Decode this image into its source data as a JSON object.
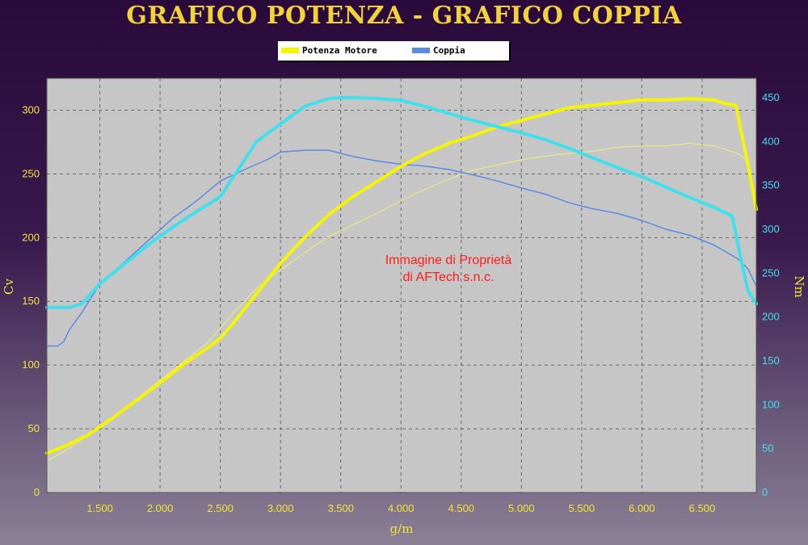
{
  "chart_data": {
    "type": "line",
    "title": "GRAFICO POTENZA - GRAFICO COPPIA",
    "xlabel": "g/m",
    "ylabel_left": "Cv",
    "ylabel_right": "Nm",
    "xlim": [
      1060,
      6950
    ],
    "ylim_left": [
      0,
      325
    ],
    "ylim_right": [
      0,
      472
    ],
    "x_ticks": [
      1500,
      2000,
      2500,
      3000,
      3500,
      4000,
      4500,
      5000,
      5500,
      6000,
      6500
    ],
    "x_tick_labels": [
      "1.500",
      "2.000",
      "2.500",
      "3.000",
      "3.500",
      "4.000",
      "4.500",
      "5.000",
      "5.500",
      "6.000",
      "6.500"
    ],
    "y_left_ticks": [
      0,
      50,
      100,
      150,
      200,
      250,
      300
    ],
    "y_right_ticks": [
      0,
      50,
      100,
      150,
      200,
      250,
      300,
      350,
      400,
      450
    ],
    "grid": true,
    "legend_position": "top-center",
    "legend": [
      {
        "label": "Potenza Motore",
        "color": "#f5f500"
      },
      {
        "label": "Coppia",
        "color": "#5a8be0"
      }
    ],
    "annotation": [
      "Immagine di Proprietà",
      "di AFTech s.n.c."
    ],
    "series": [
      {
        "axis": "left",
        "color": "#f5f500",
        "width": 4,
        "x": [
          1060,
          1200,
          1400,
          1600,
          1800,
          2000,
          2200,
          2400,
          2500,
          2600,
          2800,
          3000,
          3200,
          3400,
          3600,
          3800,
          4000,
          4200,
          4400,
          4600,
          4800,
          5000,
          5200,
          5400,
          5600,
          5800,
          6000,
          6200,
          6400,
          6600,
          6700,
          6780,
          6820,
          6880,
          6950
        ],
        "y": [
          31,
          36,
          45,
          58,
          72,
          86,
          101,
          114,
          121,
          132,
          156,
          180,
          200,
          218,
          232,
          244,
          256,
          266,
          274,
          280,
          287,
          292,
          297,
          302,
          304,
          306,
          308,
          308,
          309,
          308,
          305,
          304,
          285,
          258,
          222
        ]
      },
      {
        "axis": "left",
        "color": "#eef07a",
        "width": 1,
        "x": [
          1060,
          1200,
          1400,
          1600,
          1800,
          2000,
          2200,
          2400,
          2600,
          2800,
          3000,
          3200,
          3400,
          3600,
          3800,
          4000,
          4200,
          4400,
          4600,
          4800,
          5000,
          5200,
          5400,
          5600,
          5800,
          6000,
          6200,
          6400,
          6600,
          6800,
          6880
        ],
        "y": [
          25,
          32,
          45,
          58,
          73,
          88,
          103,
          118,
          140,
          160,
          175,
          188,
          201,
          210,
          219,
          229,
          238,
          246,
          253,
          257,
          261,
          264,
          266,
          268,
          271,
          272,
          272,
          274,
          272,
          266,
          260
        ]
      },
      {
        "axis": "right",
        "color": "#3ee0ee",
        "width": 4,
        "x": [
          1060,
          1150,
          1250,
          1350,
          1500,
          1700,
          1900,
          2100,
          2300,
          2500,
          2600,
          2800,
          3000,
          3200,
          3400,
          3500,
          3600,
          3800,
          4000,
          4200,
          4400,
          4600,
          4800,
          5000,
          5200,
          5400,
          5600,
          5800,
          6000,
          6200,
          6400,
          6600,
          6750,
          6820,
          6880,
          6950
        ],
        "y": [
          211,
          211,
          211,
          215,
          238,
          260,
          282,
          302,
          320,
          337,
          358,
          400,
          420,
          440,
          449,
          450,
          450,
          449,
          447,
          440,
          432,
          424,
          417,
          410,
          402,
          392,
          381,
          370,
          360,
          348,
          336,
          325,
          315,
          268,
          230,
          215
        ]
      },
      {
        "axis": "right",
        "color": "#5a8be0",
        "width": 1.5,
        "x": [
          1060,
          1150,
          1200,
          1250,
          1350,
          1500,
          1700,
          1900,
          2100,
          2300,
          2500,
          2700,
          2900,
          3000,
          3200,
          3400,
          3600,
          3800,
          4000,
          4200,
          4400,
          4600,
          4800,
          5000,
          5200,
          5400,
          5600,
          5800,
          6000,
          6200,
          6400,
          6600,
          6800,
          6880,
          6950
        ],
        "y": [
          167,
          167,
          172,
          186,
          205,
          238,
          262,
          287,
          312,
          332,
          355,
          368,
          380,
          388,
          390,
          390,
          383,
          378,
          374,
          372,
          368,
          362,
          355,
          347,
          340,
          330,
          323,
          318,
          310,
          300,
          293,
          282,
          266,
          255,
          235
        ]
      }
    ]
  }
}
